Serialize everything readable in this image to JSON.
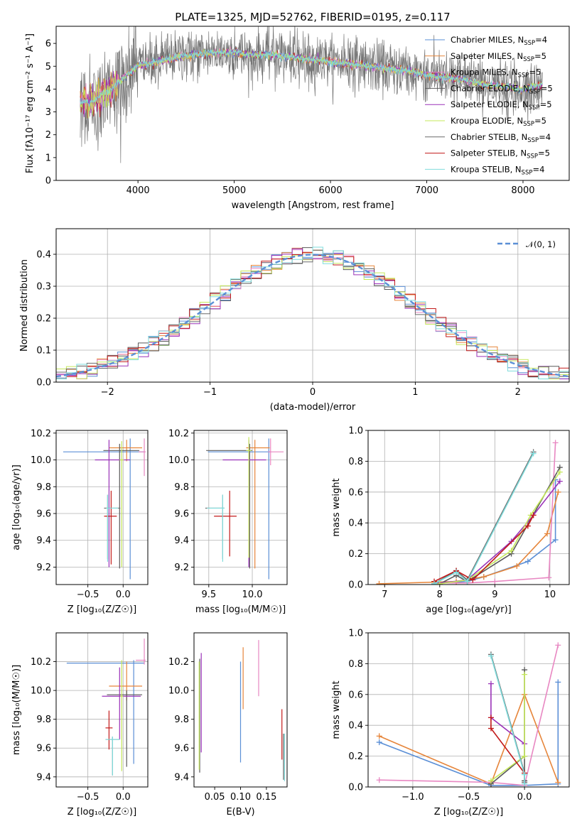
{
  "figure": {
    "title": "PLATE=1325, MJD=52762, FIBERID=0195, z=0.117"
  },
  "colors": {
    "Chabrier MILES": "#5b8fd6",
    "Salpeter MILES": "#e6853a",
    "Kroupa MILES": "#e887c2",
    "Chabrier ELODIE": "#5a5a5a",
    "Salpeter ELODIE": "#9a32b8",
    "Kroupa ELODIE": "#c5e85a",
    "Chabrier STELIB": "#6a6a6a",
    "Salpeter STELIB": "#c21a1a",
    "Kroupa STELIB": "#7fdcdc"
  },
  "chart_data": [
    {
      "id": "spectrum",
      "type": "line",
      "title": "PLATE=1325, MJD=52762, FIBERID=0195, z=0.117",
      "xlabel": "wavelength [Angstrom, rest frame]",
      "ylabel": "Flux [fλ10⁻¹⁷ erg cm⁻² s⁻¹ A⁻¹]",
      "xlim": [
        3150,
        8480
      ],
      "ylim": [
        0,
        6.75
      ],
      "xticks": [
        4000,
        5000,
        6000,
        7000,
        8000
      ],
      "yticks": [
        0,
        1,
        2,
        3,
        4,
        5,
        6
      ],
      "grid": false,
      "legend_position": "top-right",
      "legend": [
        "Chabrier MILES, N_SSP=4",
        "Salpeter MILES, N_SSP=5",
        "Kroupa MILES, N_SSP=5",
        "Chabrier ELODIE, N_SSP=5",
        "Salpeter ELODIE, N_SSP=5",
        "Kroupa ELODIE, N_SSP=5",
        "Chabrier STELIB, N_SSP=4",
        "Salpeter STELIB, N_SSP=5",
        "Kroupa STELIB, N_SSP=4"
      ],
      "data_trend": {
        "x": [
          3400,
          3500,
          3600,
          3700,
          3800,
          3900,
          4000,
          4100,
          4200,
          4400,
          4600,
          4800,
          5000,
          5200,
          5400,
          5600,
          5800,
          6000,
          6200,
          6400,
          6600,
          6800,
          7000,
          7200,
          7400,
          7600,
          7800,
          8000,
          8200
        ],
        "y": [
          3.5,
          3.4,
          3.7,
          3.9,
          4.3,
          4.7,
          5.0,
          5.1,
          5.2,
          5.4,
          5.5,
          5.6,
          5.6,
          5.5,
          5.5,
          5.4,
          5.3,
          5.2,
          5.1,
          5.0,
          4.9,
          4.8,
          4.6,
          4.5,
          4.4,
          4.2,
          4.1,
          4.0,
          4.2
        ]
      }
    },
    {
      "id": "residuals",
      "type": "line",
      "xlabel": "(data-model)/error",
      "ylabel": "Normed distribution",
      "xlim": [
        -2.5,
        2.5
      ],
      "ylim": [
        0,
        0.48
      ],
      "xticks": [
        -2,
        -1,
        0,
        1,
        2
      ],
      "yticks": [
        0.0,
        0.1,
        0.2,
        0.3,
        0.4
      ],
      "grid": true,
      "legend_position": "top-right",
      "legend": [
        "𝒩(0, 1)"
      ],
      "gaussian": {
        "mean": 0,
        "sigma": 1
      },
      "bin_width": 0.1
    },
    {
      "id": "age-vs-Z",
      "type": "scatter",
      "xlabel": "Z [log₁₀(Z/Z☉)]",
      "ylabel": "age  [log₁₀(age/yr)]",
      "xlim": [
        -0.95,
        0.35
      ],
      "ylim": [
        9.07,
        10.22
      ],
      "xticks": [
        -0.5,
        0.0
      ],
      "yticks": [
        9.2,
        9.4,
        9.6,
        9.8,
        10.0,
        10.2
      ],
      "grid": true,
      "points": [
        {
          "model": "Chabrier MILES",
          "x": 0.1,
          "y": 10.06,
          "xerr": [
            0.95,
            0.2
          ],
          "yerr": [
            0.95,
            0.1
          ]
        },
        {
          "model": "Salpeter MILES",
          "x": 0.05,
          "y": 10.09,
          "xerr": [
            0.25,
            0.22
          ],
          "yerr": [
            0.1,
            0.06
          ]
        },
        {
          "model": "Kroupa MILES",
          "x": 0.3,
          "y": 10.06,
          "xerr": [
            0.08,
            0.02
          ],
          "yerr": [
            0.18,
            0.1
          ]
        },
        {
          "model": "Chabrier ELODIE",
          "x": -0.05,
          "y": 10.07,
          "xerr": [
            0.23,
            0.28
          ],
          "yerr": [
            0.88,
            0.05
          ]
        },
        {
          "model": "Salpeter ELODIE",
          "x": -0.2,
          "y": 10.0,
          "xerr": [
            0.2,
            0.3
          ],
          "yerr": [
            0.8,
            0.15
          ]
        },
        {
          "model": "Kroupa ELODIE",
          "x": -0.02,
          "y": 10.0,
          "xerr": [
            0.03,
            0.03
          ],
          "yerr": [
            0.8,
            0.14
          ]
        },
        {
          "model": "Chabrier STELIB",
          "x": -0.22,
          "y": 9.64,
          "xerr": [
            0.05,
            0.18
          ],
          "yerr": [
            0.38,
            0.1
          ]
        },
        {
          "model": "Salpeter STELIB",
          "x": -0.17,
          "y": 9.58,
          "xerr": [
            0.1,
            0.08
          ],
          "yerr": [
            0.36,
            0.19
          ]
        },
        {
          "model": "Kroupa STELIB",
          "x": -0.22,
          "y": 9.64,
          "xerr": [
            0.02,
            0.15
          ],
          "yerr": [
            0.4,
            0.1
          ]
        }
      ]
    },
    {
      "id": "age-vs-mass",
      "type": "scatter",
      "xlabel": "mass [log₁₀(M/M☉)]",
      "ylabel": "",
      "xlim": [
        9.33,
        10.4
      ],
      "ylim": [
        9.07,
        10.22
      ],
      "xticks": [
        9.5,
        10.0
      ],
      "yticks": [
        9.2,
        9.4,
        9.6,
        9.8,
        10.0,
        10.2
      ],
      "grid": true,
      "points": [
        {
          "model": "Chabrier MILES",
          "x": 10.19,
          "y": 10.06,
          "xerr": [
            0.7,
            0.02
          ],
          "yerr": [
            0.95,
            0.1
          ]
        },
        {
          "model": "Salpeter MILES",
          "x": 10.03,
          "y": 10.09,
          "xerr": [
            0.1,
            0.17
          ],
          "yerr": [
            0.9,
            0.06
          ]
        },
        {
          "model": "Kroupa MILES",
          "x": 10.21,
          "y": 10.06,
          "xerr": [
            0.03,
            0.15
          ],
          "yerr": [
            0.1,
            0.1
          ]
        },
        {
          "model": "Chabrier ELODIE",
          "x": 9.97,
          "y": 10.07,
          "xerr": [
            0.5,
            0.03
          ],
          "yerr": [
            0.88,
            0.05
          ]
        },
        {
          "model": "Salpeter ELODIE",
          "x": 9.96,
          "y": 10.0,
          "xerr": [
            0.3,
            0.2
          ],
          "yerr": [
            0.8,
            0.15
          ]
        },
        {
          "model": "Kroupa ELODIE",
          "x": 9.96,
          "y": 10.07,
          "xerr": [
            0.03,
            0.03
          ],
          "yerr": [
            0.8,
            0.1
          ]
        },
        {
          "model": "Chabrier STELIB",
          "x": 9.66,
          "y": 9.64,
          "xerr": [
            0.2,
            0.02
          ],
          "yerr": [
            0.38,
            0.1
          ]
        },
        {
          "model": "Salpeter STELIB",
          "x": 9.74,
          "y": 9.58,
          "xerr": [
            0.18,
            0.08
          ],
          "yerr": [
            0.3,
            0.19
          ]
        },
        {
          "model": "Kroupa STELIB",
          "x": 9.66,
          "y": 9.64,
          "xerr": [
            0.18,
            0.02
          ],
          "yerr": [
            0.4,
            0.1
          ]
        }
      ]
    },
    {
      "id": "weight-vs-age",
      "type": "line",
      "xlabel": "age  [log₁₀(age/yr)]",
      "ylabel": "mass weight",
      "xlim": [
        6.7,
        10.35
      ],
      "ylim": [
        0,
        1
      ],
      "xticks": [
        7,
        8,
        9,
        10
      ],
      "yticks": [
        0.0,
        0.2,
        0.4,
        0.6,
        0.8,
        1.0
      ],
      "grid": true,
      "series": [
        {
          "model": "Chabrier MILES",
          "x": [
            8.0,
            8.5,
            8.8,
            9.6,
            10.1,
            10.1
          ],
          "y": [
            0.01,
            0.02,
            0.05,
            0.15,
            0.29,
            0.68
          ]
        },
        {
          "model": "Salpeter MILES",
          "x": [
            6.9,
            8.3,
            8.8,
            9.4,
            9.95,
            10.15
          ],
          "y": [
            0.005,
            0.02,
            0.05,
            0.12,
            0.33,
            0.6
          ]
        },
        {
          "model": "Kroupa MILES",
          "x": [
            8.0,
            8.5,
            9.0,
            9.98,
            10.1
          ],
          "y": [
            0.01,
            0.01,
            0.02,
            0.045,
            0.92
          ]
        },
        {
          "model": "Chabrier ELODIE",
          "x": [
            8.0,
            8.3,
            8.5,
            9.3,
            10.18
          ],
          "y": [
            0.005,
            0.06,
            0.02,
            0.2,
            0.76
          ]
        },
        {
          "model": "Salpeter ELODIE",
          "x": [
            8.0,
            8.5,
            9.3,
            9.7,
            10.18
          ],
          "y": [
            0.01,
            0.03,
            0.28,
            0.45,
            0.67
          ]
        },
        {
          "model": "Kroupa ELODIE",
          "x": [
            8.0,
            8.5,
            9.3,
            9.65,
            10.18
          ],
          "y": [
            0.005,
            0.03,
            0.22,
            0.45,
            0.73
          ]
        },
        {
          "model": "Chabrier STELIB",
          "x": [
            7.9,
            8.3,
            8.5,
            9.7
          ],
          "y": [
            0.005,
            0.09,
            0.03,
            0.86
          ]
        },
        {
          "model": "Salpeter STELIB",
          "x": [
            7.9,
            8.3,
            8.6,
            9.6,
            9.7
          ],
          "y": [
            0.02,
            0.09,
            0.03,
            0.38,
            0.45
          ]
        },
        {
          "model": "Kroupa STELIB",
          "x": [
            7.9,
            8.3,
            8.5,
            9.7
          ],
          "y": [
            0.005,
            0.08,
            0.02,
            0.85
          ]
        }
      ]
    },
    {
      "id": "mass-vs-Z",
      "type": "scatter",
      "xlabel": "Z [log₁₀(Z/Z☉)]",
      "ylabel": "mass [log₁₀(M/M☉)]",
      "xlim": [
        -0.95,
        0.35
      ],
      "ylim": [
        9.33,
        10.4
      ],
      "xticks": [
        -0.5,
        0.0
      ],
      "yticks": [
        9.4,
        9.6,
        9.8,
        10.0,
        10.2
      ],
      "grid": true,
      "points": [
        {
          "model": "Chabrier MILES",
          "x": 0.15,
          "y": 10.19,
          "xerr": [
            0.95,
            0.15
          ],
          "yerr": [
            0.7,
            0.02
          ]
        },
        {
          "model": "Salpeter MILES",
          "x": 0.05,
          "y": 10.03,
          "xerr": [
            0.25,
            0.22
          ],
          "yerr": [
            0.1,
            0.17
          ]
        },
        {
          "model": "Kroupa MILES",
          "x": 0.3,
          "y": 10.21,
          "xerr": [
            0.12,
            0.02
          ],
          "yerr": [
            0.03,
            0.15
          ]
        },
        {
          "model": "Chabrier ELODIE",
          "x": 0.05,
          "y": 9.97,
          "xerr": [
            0.28,
            0.22
          ],
          "yerr": [
            0.5,
            0.03
          ]
        },
        {
          "model": "Salpeter ELODIE",
          "x": -0.05,
          "y": 9.96,
          "xerr": [
            0.25,
            0.3
          ],
          "yerr": [
            0.3,
            0.2
          ]
        },
        {
          "model": "Kroupa ELODIE",
          "x": -0.02,
          "y": 9.96,
          "xerr": [
            0.02,
            0.02
          ],
          "yerr": [
            0.52,
            0.25
          ]
        },
        {
          "model": "Chabrier STELIB",
          "x": -0.15,
          "y": 9.66,
          "xerr": [
            0.1,
            0.1
          ],
          "yerr": [
            0.25,
            0.02
          ]
        },
        {
          "model": "Salpeter STELIB",
          "x": -0.2,
          "y": 9.74,
          "xerr": [
            0.05,
            0.05
          ],
          "yerr": [
            0.15,
            0.12
          ]
        },
        {
          "model": "Kroupa STELIB",
          "x": -0.15,
          "y": 9.66,
          "xerr": [
            0.1,
            0.1
          ],
          "yerr": [
            0.25,
            0.02
          ]
        }
      ]
    },
    {
      "id": "mass-vs-ebv",
      "type": "scatter",
      "xlabel": "E(B-V)",
      "ylabel": "",
      "xlim": [
        0.01,
        0.19
      ],
      "ylim": [
        9.33,
        10.4
      ],
      "xticks": [
        0.05,
        0.1,
        0.15
      ],
      "xtick_labels": [
        "0.05",
        "0.10",
        "0.15"
      ],
      "yticks": [
        9.4,
        9.6,
        9.8,
        10.0,
        10.2
      ],
      "grid": false,
      "points": [
        {
          "model": "Chabrier MILES",
          "x": 0.1,
          "y": 9.9,
          "yerr": [
            0.4,
            0.3
          ]
        },
        {
          "model": "Salpeter MILES",
          "x": 0.105,
          "y": 10.1,
          "yerr": [
            0.23,
            0.2
          ]
        },
        {
          "model": "Kroupa MILES",
          "x": 0.135,
          "y": 10.16,
          "yerr": [
            0.2,
            0.19
          ]
        },
        {
          "model": "Chabrier ELODIE",
          "x": 0.021,
          "y": 9.85,
          "yerr": [
            0.42,
            0.37
          ]
        },
        {
          "model": "Salpeter ELODIE",
          "x": 0.024,
          "y": 9.95,
          "yerr": [
            0.38,
            0.31
          ]
        },
        {
          "model": "Kroupa ELODIE",
          "x": 0.02,
          "y": 9.8,
          "yerr": [
            0.35,
            0.4
          ]
        },
        {
          "model": "Chabrier STELIB",
          "x": 0.183,
          "y": 9.5,
          "yerr": [
            0.12,
            0.2
          ]
        },
        {
          "model": "Salpeter STELIB",
          "x": 0.18,
          "y": 9.7,
          "yerr": [
            0.18,
            0.17
          ]
        },
        {
          "model": "Kroupa STELIB",
          "x": 0.185,
          "y": 9.55,
          "yerr": [
            0.18,
            0.15
          ]
        }
      ]
    },
    {
      "id": "weight-vs-Z",
      "type": "line",
      "xlabel": "Z [log₁₀(Z/Z☉)]",
      "ylabel": "mass weight",
      "xlim": [
        -1.4,
        0.4
      ],
      "ylim": [
        0,
        1
      ],
      "xticks": [
        -1.0,
        -0.5,
        0.0
      ],
      "yticks": [
        0.0,
        0.2,
        0.4,
        0.6,
        0.8,
        1.0
      ],
      "grid": true,
      "series": [
        {
          "model": "Chabrier MILES",
          "x": [
            -1.3,
            -0.3,
            0.0,
            0.3,
            0.3
          ],
          "y": [
            0.29,
            0.01,
            0.01,
            0.02,
            0.68
          ]
        },
        {
          "model": "Salpeter MILES",
          "x": [
            -1.3,
            -0.3,
            0.0,
            0.3
          ],
          "y": [
            0.33,
            0.02,
            0.6,
            0.03
          ]
        },
        {
          "model": "Kroupa MILES",
          "x": [
            -1.3,
            -0.3,
            0.0,
            0.3
          ],
          "y": [
            0.045,
            0.03,
            0.01,
            0.92
          ]
        },
        {
          "model": "Chabrier ELODIE",
          "x": [
            -0.3,
            0.0,
            0.0,
            0.0
          ],
          "y": [
            0.02,
            0.2,
            0.04,
            0.76
          ]
        },
        {
          "model": "Salpeter ELODIE",
          "x": [
            -0.3,
            -0.3,
            0.0
          ],
          "y": [
            0.67,
            0.45,
            0.28
          ]
        },
        {
          "model": "Kroupa ELODIE",
          "x": [
            -0.3,
            0.0,
            0.0
          ],
          "y": [
            0.04,
            0.2,
            0.73
          ]
        },
        {
          "model": "Chabrier STELIB",
          "x": [
            -0.3,
            0.0,
            0.0
          ],
          "y": [
            0.86,
            0.09,
            0.03
          ]
        },
        {
          "model": "Salpeter STELIB",
          "x": [
            -0.3,
            -0.3,
            0.0
          ],
          "y": [
            0.45,
            0.38,
            0.09
          ]
        },
        {
          "model": "Kroupa STELIB",
          "x": [
            -0.3,
            0.0,
            0.0
          ],
          "y": [
            0.85,
            0.08,
            0.02
          ]
        }
      ]
    }
  ]
}
